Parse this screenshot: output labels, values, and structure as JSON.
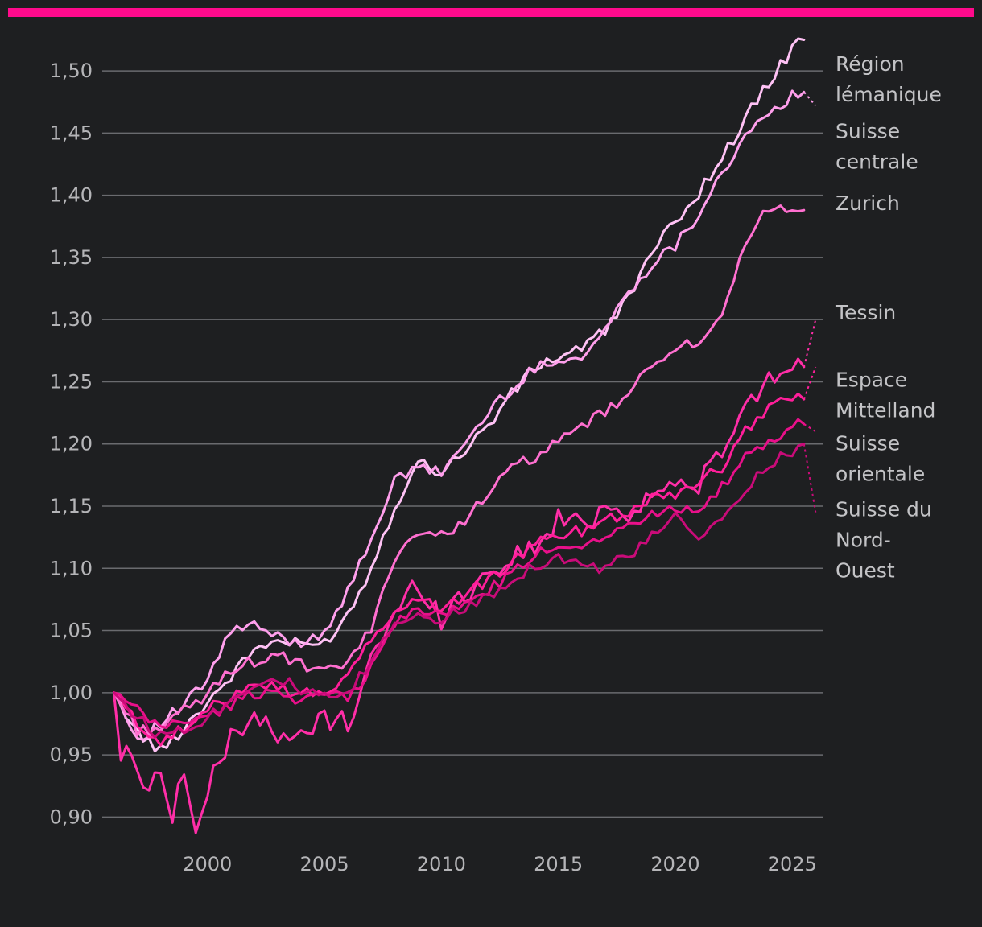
{
  "accent_color": "#ff0a8c",
  "chart_data": {
    "type": "line",
    "title": "",
    "xlabel": "",
    "ylabel": "",
    "xlim": [
      1995.5,
      2026.3
    ],
    "ylim": [
      0.875,
      1.535
    ],
    "grid": true,
    "x_ticks": [
      {
        "value": 2000,
        "label": "2000"
      },
      {
        "value": 2005,
        "label": "2005"
      },
      {
        "value": 2010,
        "label": "2010"
      },
      {
        "value": 2015,
        "label": "2015"
      },
      {
        "value": 2020,
        "label": "2020"
      },
      {
        "value": 2025,
        "label": "2025"
      }
    ],
    "y_ticks": [
      {
        "value": 0.9,
        "label": "0,90"
      },
      {
        "value": 0.95,
        "label": "0,95"
      },
      {
        "value": 1.0,
        "label": "1,00"
      },
      {
        "value": 1.05,
        "label": "1,05"
      },
      {
        "value": 1.1,
        "label": "1,10"
      },
      {
        "value": 1.15,
        "label": "1,15"
      },
      {
        "value": 1.2,
        "label": "1,20"
      },
      {
        "value": 1.25,
        "label": "1,25"
      },
      {
        "value": 1.3,
        "label": "1,30"
      },
      {
        "value": 1.35,
        "label": "1,35"
      },
      {
        "value": 1.4,
        "label": "1,40"
      },
      {
        "value": 1.45,
        "label": "1,45"
      },
      {
        "value": 1.5,
        "label": "1,50"
      }
    ],
    "series": [
      {
        "name": "Région lémanique",
        "label_lines": [
          "Région",
          "lémanique"
        ],
        "label_y": 1.5,
        "color": "#ffc2f5",
        "points": [
          [
            1996,
            1.0
          ],
          [
            1997,
            0.968
          ],
          [
            1998,
            0.953
          ],
          [
            1999,
            0.972
          ],
          [
            2000,
            0.993
          ],
          [
            2001,
            1.013
          ],
          [
            2002,
            1.035
          ],
          [
            2003,
            1.042
          ],
          [
            2004,
            1.038
          ],
          [
            2005,
            1.04
          ],
          [
            2006,
            1.063
          ],
          [
            2007,
            1.1
          ],
          [
            2008,
            1.15
          ],
          [
            2009,
            1.185
          ],
          [
            2010,
            1.178
          ],
          [
            2011,
            1.195
          ],
          [
            2012,
            1.215
          ],
          [
            2013,
            1.24
          ],
          [
            2014,
            1.262
          ],
          [
            2015,
            1.27
          ],
          [
            2016,
            1.278
          ],
          [
            2017,
            1.29
          ],
          [
            2018,
            1.32
          ],
          [
            2019,
            1.352
          ],
          [
            2020,
            1.38
          ],
          [
            2021,
            1.402
          ],
          [
            2022,
            1.43
          ],
          [
            2023,
            1.462
          ],
          [
            2024,
            1.49
          ],
          [
            2025,
            1.518
          ],
          [
            2025.5,
            1.525
          ]
        ],
        "projection": []
      },
      {
        "name": "Suisse centrale",
        "label_lines": [
          "Suisse",
          "centrale"
        ],
        "label_y": 1.446,
        "color": "#ff9fec",
        "points": [
          [
            1996,
            1.0
          ],
          [
            1997,
            0.963
          ],
          [
            1998,
            0.975
          ],
          [
            1999,
            0.99
          ],
          [
            2000,
            1.01
          ],
          [
            2001,
            1.05
          ],
          [
            2002,
            1.053
          ],
          [
            2003,
            1.045
          ],
          [
            2004,
            1.04
          ],
          [
            2005,
            1.05
          ],
          [
            2006,
            1.08
          ],
          [
            2007,
            1.125
          ],
          [
            2008,
            1.17
          ],
          [
            2009,
            1.18
          ],
          [
            2010,
            1.178
          ],
          [
            2011,
            1.2
          ],
          [
            2012,
            1.225
          ],
          [
            2013,
            1.245
          ],
          [
            2014,
            1.26
          ],
          [
            2015,
            1.27
          ],
          [
            2016,
            1.268
          ],
          [
            2017,
            1.292
          ],
          [
            2018,
            1.322
          ],
          [
            2019,
            1.345
          ],
          [
            2020,
            1.36
          ],
          [
            2021,
            1.385
          ],
          [
            2022,
            1.42
          ],
          [
            2023,
            1.445
          ],
          [
            2024,
            1.465
          ],
          [
            2025,
            1.48
          ],
          [
            2025.5,
            1.483
          ]
        ],
        "projection": [
          [
            2025.5,
            1.483
          ],
          [
            2026,
            1.472
          ]
        ]
      },
      {
        "name": "Zurich",
        "label_lines": [
          "Zurich"
        ],
        "label_y": 1.388,
        "color": "#ff6fd0",
        "points": [
          [
            1996,
            1.0
          ],
          [
            1997,
            0.97
          ],
          [
            1998,
            0.972
          ],
          [
            1999,
            0.985
          ],
          [
            2000,
            0.998
          ],
          [
            2001,
            1.02
          ],
          [
            2002,
            1.025
          ],
          [
            2003,
            1.03
          ],
          [
            2004,
            1.022
          ],
          [
            2005,
            1.015
          ],
          [
            2006,
            1.025
          ],
          [
            2007,
            1.05
          ],
          [
            2008,
            1.11
          ],
          [
            2009,
            1.13
          ],
          [
            2010,
            1.125
          ],
          [
            2011,
            1.14
          ],
          [
            2012,
            1.16
          ],
          [
            2013,
            1.18
          ],
          [
            2014,
            1.19
          ],
          [
            2015,
            1.2
          ],
          [
            2016,
            1.215
          ],
          [
            2017,
            1.225
          ],
          [
            2018,
            1.24
          ],
          [
            2019,
            1.262
          ],
          [
            2020,
            1.28
          ],
          [
            2021,
            1.278
          ],
          [
            2022,
            1.3
          ],
          [
            2023,
            1.36
          ],
          [
            2024,
            1.392
          ],
          [
            2025,
            1.39
          ],
          [
            2025.5,
            1.388
          ]
        ],
        "projection": []
      },
      {
        "name": "Tessin",
        "label_lines": [
          "Tessin"
        ],
        "label_y": 1.3,
        "color": "#ff2ea8",
        "points": [
          [
            1996,
            1.0
          ],
          [
            1996.3,
            0.95
          ],
          [
            1997,
            0.945
          ],
          [
            1997.5,
            0.915
          ],
          [
            1998,
            0.945
          ],
          [
            1998.5,
            0.9
          ],
          [
            1999,
            0.94
          ],
          [
            1999.5,
            0.885
          ],
          [
            2000,
            0.92
          ],
          [
            2001,
            0.965
          ],
          [
            2002,
            0.985
          ],
          [
            2003,
            0.96
          ],
          [
            2004,
            0.965
          ],
          [
            2005,
            0.98
          ],
          [
            2006,
            0.975
          ],
          [
            2007,
            1.03
          ],
          [
            2008,
            1.06
          ],
          [
            2009,
            1.09
          ],
          [
            2010,
            1.06
          ],
          [
            2011,
            1.08
          ],
          [
            2012,
            1.095
          ],
          [
            2013,
            1.11
          ],
          [
            2014,
            1.115
          ],
          [
            2015,
            1.14
          ],
          [
            2016,
            1.135
          ],
          [
            2017,
            1.15
          ],
          [
            2018,
            1.145
          ],
          [
            2019,
            1.16
          ],
          [
            2020,
            1.165
          ],
          [
            2021,
            1.17
          ],
          [
            2022,
            1.19
          ],
          [
            2023,
            1.23
          ],
          [
            2024,
            1.25
          ],
          [
            2025,
            1.266
          ],
          [
            2025.5,
            1.262
          ]
        ],
        "projection": [
          [
            2025.5,
            1.262
          ],
          [
            2026,
            1.3
          ]
        ]
      },
      {
        "name": "Espace Mittelland",
        "label_lines": [
          "Espace",
          "Mittelland"
        ],
        "label_y": 1.246,
        "color": "#ff1e9a",
        "points": [
          [
            1996,
            1.0
          ],
          [
            1997,
            0.975
          ],
          [
            1998,
            0.962
          ],
          [
            1999,
            0.97
          ],
          [
            2000,
            0.985
          ],
          [
            2001,
            0.998
          ],
          [
            2002,
            1.01
          ],
          [
            2003,
            1.005
          ],
          [
            2004,
            0.998
          ],
          [
            2005,
            1.002
          ],
          [
            2006,
            1.01
          ],
          [
            2007,
            1.045
          ],
          [
            2008,
            1.062
          ],
          [
            2009,
            1.078
          ],
          [
            2010,
            1.065
          ],
          [
            2011,
            1.08
          ],
          [
            2012,
            1.09
          ],
          [
            2013,
            1.105
          ],
          [
            2014,
            1.118
          ],
          [
            2015,
            1.128
          ],
          [
            2016,
            1.13
          ],
          [
            2017,
            1.14
          ],
          [
            2018,
            1.145
          ],
          [
            2019,
            1.158
          ],
          [
            2020,
            1.16
          ],
          [
            2021,
            1.17
          ],
          [
            2022,
            1.18
          ],
          [
            2023,
            1.212
          ],
          [
            2024,
            1.23
          ],
          [
            2025,
            1.238
          ],
          [
            2025.5,
            1.236
          ]
        ],
        "projection": [
          [
            2025.5,
            1.236
          ],
          [
            2026,
            1.262
          ]
        ]
      },
      {
        "name": "Suisse orientale",
        "label_lines": [
          "Suisse",
          "orientale"
        ],
        "label_y": 1.195,
        "color": "#e8108a",
        "points": [
          [
            1996,
            1.0
          ],
          [
            1997,
            0.985
          ],
          [
            1998,
            0.972
          ],
          [
            1999,
            0.978
          ],
          [
            2000,
            0.98
          ],
          [
            2001,
            0.99
          ],
          [
            2002,
            1.0
          ],
          [
            2003,
            1.0
          ],
          [
            2004,
            0.995
          ],
          [
            2005,
            0.998
          ],
          [
            2006,
            0.995
          ],
          [
            2007,
            1.02
          ],
          [
            2008,
            1.055
          ],
          [
            2009,
            1.07
          ],
          [
            2010,
            1.06
          ],
          [
            2011,
            1.072
          ],
          [
            2012,
            1.082
          ],
          [
            2013,
            1.095
          ],
          [
            2014,
            1.11
          ],
          [
            2015,
            1.12
          ],
          [
            2016,
            1.118
          ],
          [
            2017,
            1.128
          ],
          [
            2018,
            1.135
          ],
          [
            2019,
            1.142
          ],
          [
            2020,
            1.15
          ],
          [
            2021,
            1.148
          ],
          [
            2022,
            1.165
          ],
          [
            2023,
            1.188
          ],
          [
            2024,
            1.2
          ],
          [
            2025,
            1.215
          ],
          [
            2025.5,
            1.216
          ]
        ],
        "projection": [
          [
            2025.5,
            1.216
          ],
          [
            2026,
            1.21
          ]
        ]
      },
      {
        "name": "Suisse du Nord-Ouest",
        "label_lines": [
          "Suisse du",
          "Nord-",
          "Ouest"
        ],
        "label_y": 1.142,
        "color": "#c90b79",
        "points": [
          [
            1996,
            1.0
          ],
          [
            1997,
            0.98
          ],
          [
            1998,
            0.965
          ],
          [
            1999,
            0.972
          ],
          [
            2000,
            0.98
          ],
          [
            2001,
            0.995
          ],
          [
            2002,
            1.008
          ],
          [
            2003,
            1.012
          ],
          [
            2004,
            1.002
          ],
          [
            2005,
            0.995
          ],
          [
            2006,
            0.998
          ],
          [
            2007,
            1.025
          ],
          [
            2008,
            1.055
          ],
          [
            2009,
            1.065
          ],
          [
            2010,
            1.058
          ],
          [
            2011,
            1.068
          ],
          [
            2012,
            1.078
          ],
          [
            2013,
            1.092
          ],
          [
            2014,
            1.102
          ],
          [
            2015,
            1.11
          ],
          [
            2016,
            1.102
          ],
          [
            2017,
            1.1
          ],
          [
            2018,
            1.11
          ],
          [
            2019,
            1.125
          ],
          [
            2020,
            1.14
          ],
          [
            2021,
            1.125
          ],
          [
            2022,
            1.138
          ],
          [
            2023,
            1.162
          ],
          [
            2024,
            1.185
          ],
          [
            2025,
            1.195
          ],
          [
            2025.5,
            1.2
          ]
        ],
        "projection": [
          [
            2025.5,
            1.2
          ],
          [
            2026,
            1.145
          ]
        ]
      }
    ]
  }
}
